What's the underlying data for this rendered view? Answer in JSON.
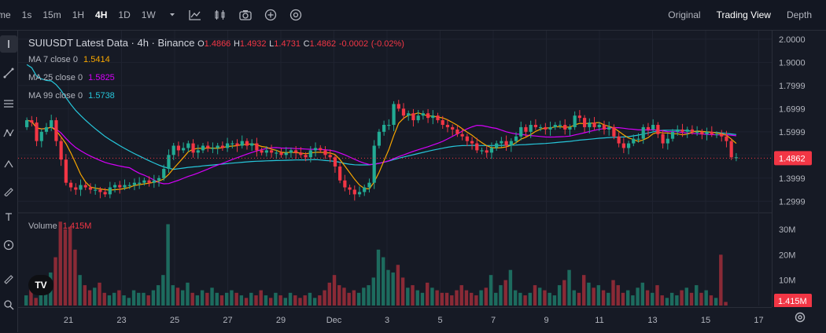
{
  "toolbar": {
    "timeframes": [
      {
        "label": "me",
        "active": false
      },
      {
        "label": "1s",
        "active": false
      },
      {
        "label": "15m",
        "active": false
      },
      {
        "label": "1H",
        "active": false
      },
      {
        "label": "4H",
        "active": true
      },
      {
        "label": "1D",
        "active": false
      },
      {
        "label": "1W",
        "active": false
      }
    ],
    "icons": [
      "chevron-down-icon",
      "indicator-chart-icon",
      "candles-icon",
      "camera-icon",
      "add-circle-icon",
      "crosshair-circle-icon"
    ],
    "views": [
      {
        "label": "Original",
        "active": false
      },
      {
        "label": "Trading View",
        "active": true
      },
      {
        "label": "Depth",
        "active": false
      }
    ]
  },
  "legend": {
    "title": "SUIUSDT Latest Data · 4h · Binance",
    "open_label": "O",
    "open": "1.4866",
    "high_label": "H",
    "high": "1.4932",
    "low_label": "L",
    "low": "1.4731",
    "close_label": "C",
    "close": "1.4862",
    "change": "-0.0002",
    "change_pct": "(-0.02%)",
    "ma": [
      {
        "label": "MA 7 close 0",
        "value": "1.5414",
        "color": "#f7a600"
      },
      {
        "label": "MA 25 close 0",
        "value": "1.5825",
        "color": "#d500f9"
      },
      {
        "label": "MA 99 close 0",
        "value": "1.5738",
        "color": "#26c6da"
      }
    ],
    "volume_label": "Volume",
    "volume_value": "1.415M"
  },
  "price_axis": {
    "ticks": [
      "2.0000",
      "1.9000",
      "1.7999",
      "1.6999",
      "1.5999",
      "1.3999",
      "1.2999"
    ],
    "last_price": "1.4862",
    "volume_ticks": [
      "30M",
      "20M",
      "10M"
    ],
    "last_volume": "1.415M"
  },
  "time_axis": {
    "labels": [
      "21",
      "23",
      "25",
      "27",
      "29",
      "Dec",
      "3",
      "5",
      "7",
      "9",
      "11",
      "13",
      "15",
      "17"
    ]
  },
  "colors": {
    "up": "#22ab94",
    "down": "#f23645",
    "ma7": "#f7a600",
    "ma25": "#d500f9",
    "ma99": "#26c6da",
    "grid": "#1f2330"
  },
  "chart_data": {
    "type": "candlestick",
    "symbol": "SUIUSDT",
    "interval": "4h",
    "ylim": [
      1.25,
      2.02
    ],
    "closes": [
      1.65,
      1.64,
      1.56,
      1.6,
      1.62,
      1.65,
      1.56,
      1.48,
      1.38,
      1.36,
      1.35,
      1.37,
      1.36,
      1.35,
      1.35,
      1.34,
      1.33,
      1.36,
      1.37,
      1.36,
      1.37,
      1.37,
      1.38,
      1.38,
      1.39,
      1.38,
      1.39,
      1.4,
      1.44,
      1.5,
      1.54,
      1.52,
      1.53,
      1.55,
      1.51,
      1.52,
      1.54,
      1.53,
      1.53,
      1.54,
      1.53,
      1.55,
      1.55,
      1.54,
      1.56,
      1.54,
      1.55,
      1.52,
      1.51,
      1.52,
      1.51,
      1.51,
      1.5,
      1.51,
      1.52,
      1.51,
      1.5,
      1.49,
      1.52,
      1.53,
      1.52,
      1.5,
      1.49,
      1.45,
      1.39,
      1.36,
      1.35,
      1.33,
      1.34,
      1.36,
      1.38,
      1.54,
      1.6,
      1.63,
      1.63,
      1.72,
      1.7,
      1.67,
      1.68,
      1.65,
      1.67,
      1.68,
      1.66,
      1.67,
      1.65,
      1.63,
      1.62,
      1.61,
      1.59,
      1.58,
      1.56,
      1.55,
      1.52,
      1.52,
      1.51,
      1.53,
      1.55,
      1.56,
      1.54,
      1.56,
      1.58,
      1.62,
      1.6,
      1.63,
      1.62,
      1.62,
      1.61,
      1.62,
      1.63,
      1.63,
      1.61,
      1.62,
      1.67,
      1.66,
      1.62,
      1.64,
      1.62,
      1.63,
      1.61,
      1.62,
      1.58,
      1.55,
      1.53,
      1.55,
      1.57,
      1.57,
      1.62,
      1.61,
      1.63,
      1.59,
      1.55,
      1.57,
      1.6,
      1.61,
      1.6,
      1.61,
      1.6,
      1.6,
      1.59,
      1.6,
      1.59,
      1.59,
      1.58,
      1.56,
      1.49,
      1.49
    ],
    "volumes_m": [
      4,
      7,
      3,
      6,
      9,
      13,
      19,
      33,
      30,
      31,
      22,
      12,
      8,
      6,
      7,
      9,
      5,
      4,
      5,
      6,
      4,
      3,
      6,
      5,
      5,
      4,
      6,
      8,
      12,
      32,
      8,
      7,
      6,
      9,
      5,
      4,
      6,
      5,
      7,
      5,
      4,
      5,
      6,
      5,
      4,
      3,
      5,
      4,
      6,
      4,
      3,
      5,
      4,
      3,
      5,
      4,
      3,
      4,
      5,
      3,
      4,
      6,
      9,
      12,
      8,
      7,
      5,
      6,
      5,
      7,
      8,
      11,
      22,
      19,
      14,
      13,
      16,
      11,
      7,
      8,
      6,
      5,
      9,
      7,
      6,
      5,
      5,
      4,
      6,
      8,
      6,
      5,
      4,
      6,
      7,
      12,
      5,
      8,
      10,
      14,
      6,
      5,
      4,
      5,
      8,
      7,
      6,
      5,
      4,
      8,
      10,
      14,
      6,
      5,
      12,
      9,
      7,
      8,
      6,
      5,
      10,
      8,
      5,
      6,
      4,
      7,
      9,
      6,
      5,
      8,
      4,
      3,
      5,
      4,
      6,
      7,
      5,
      8,
      5,
      6,
      4,
      3,
      20,
      1.415
    ]
  }
}
